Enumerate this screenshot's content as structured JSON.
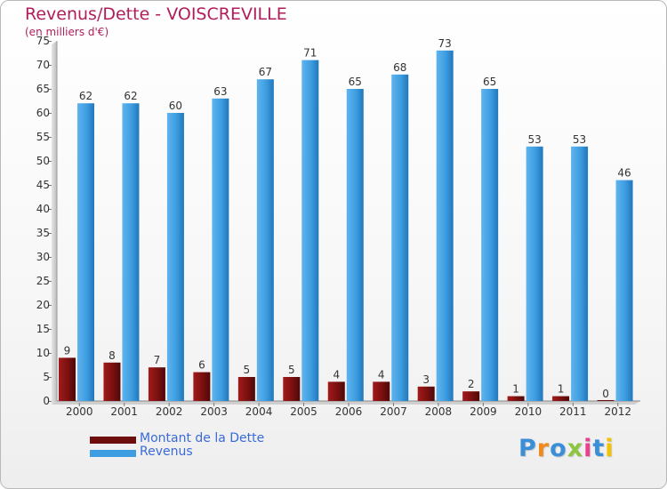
{
  "chart_data": {
    "type": "bar",
    "title": "Revenus/Dette - VOISCREVILLE",
    "subtitle": "(en milliers d'€)",
    "categories": [
      "2000",
      "2001",
      "2002",
      "2003",
      "2004",
      "2005",
      "2006",
      "2007",
      "2008",
      "2009",
      "2010",
      "2011",
      "2012"
    ],
    "series": [
      {
        "name": "Montant de la Dette",
        "color": "#7a1010",
        "values": [
          9,
          8,
          7,
          6,
          5,
          5,
          4,
          4,
          3,
          2,
          1,
          1,
          0
        ]
      },
      {
        "name": "Revenus",
        "color": "#3d9de0",
        "values": [
          62,
          62,
          60,
          63,
          67,
          71,
          65,
          68,
          73,
          65,
          53,
          53,
          46
        ]
      }
    ],
    "ylim": [
      0,
      75
    ],
    "yticks": [
      0,
      5,
      10,
      15,
      20,
      25,
      30,
      35,
      40,
      45,
      50,
      55,
      60,
      65,
      70,
      75
    ],
    "xlabel": "",
    "ylabel": "",
    "grid": false,
    "legend_position": "bottom-left"
  },
  "brand": {
    "logo_text": "Proxiti",
    "letter_colors": [
      "#3b8fd9",
      "#f08a1c",
      "#3b8fd9",
      "#8cc63f",
      "#e83f8e",
      "#3b8fd9",
      "#f3c200"
    ]
  }
}
